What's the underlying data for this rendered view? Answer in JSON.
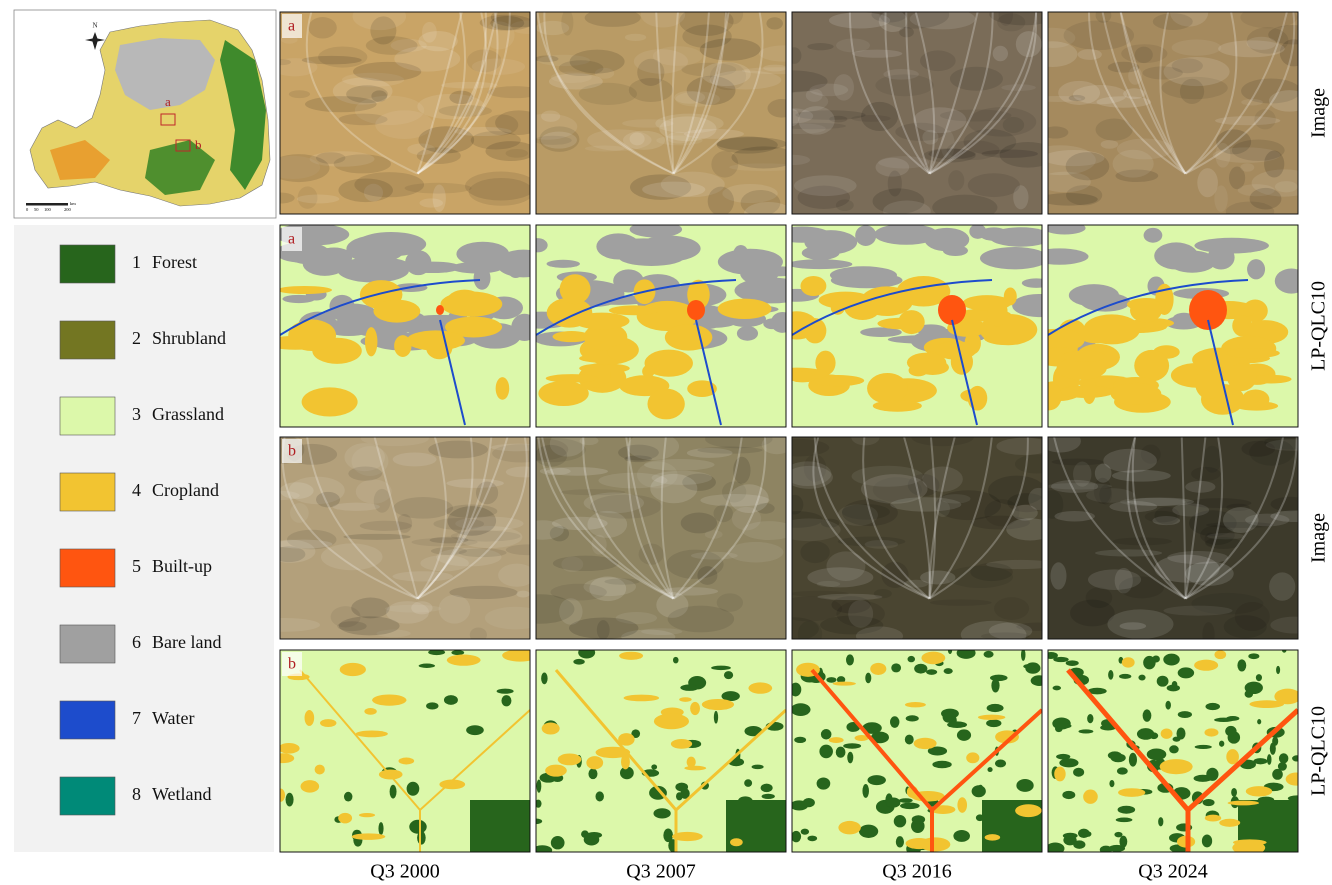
{
  "map": {
    "north": "N",
    "site_labels": [
      "a",
      "b"
    ],
    "scale_ticks": [
      "0",
      "50",
      "100",
      "200"
    ],
    "scale_unit": "km"
  },
  "legend": {
    "items": [
      {
        "number": "1",
        "name": "Forest",
        "color": "#27651c"
      },
      {
        "number": "2",
        "name": "Shrubland",
        "color": "#737622"
      },
      {
        "number": "3",
        "name": "Grassland",
        "color": "#dcf8aa"
      },
      {
        "number": "4",
        "name": "Cropland",
        "color": "#f2c431"
      },
      {
        "number": "5",
        "name": "Built-up",
        "color": "#ff5510"
      },
      {
        "number": "6",
        "name": "Bare land",
        "color": "#a0a0a0"
      },
      {
        "number": "7",
        "name": "Water",
        "color": "#1d4ccc"
      },
      {
        "number": "8",
        "name": "Wetland",
        "color": "#008a78"
      }
    ]
  },
  "rows": [
    {
      "label": "Image",
      "panel_letter": "a"
    },
    {
      "label": "LP-QLC10",
      "panel_letter": "a"
    },
    {
      "label": "Image",
      "panel_letter": "b"
    },
    {
      "label": "LP-QLC10",
      "panel_letter": "b"
    }
  ],
  "columns": [
    "Q3 2000",
    "Q3 2007",
    "Q3 2016",
    "Q3 2024"
  ]
}
